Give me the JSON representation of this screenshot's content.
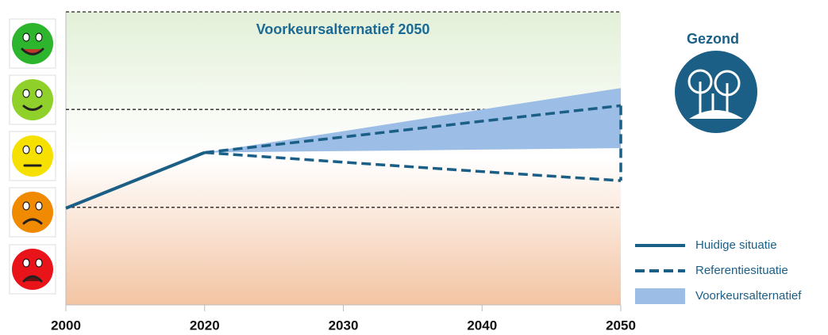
{
  "chart_data": {
    "type": "line",
    "title": "Voorkeursalternatief 2050",
    "badge": "Gezond",
    "categories": [
      "2000",
      "2020",
      "2030",
      "2040",
      "2050"
    ],
    "ylim": [
      0,
      100
    ],
    "yticks": [
      33.3,
      66.7,
      100
    ],
    "grid": true,
    "series": [
      {
        "name": "Huidige situatie",
        "color": "#1b5f86",
        "style": "solid",
        "values": [
          33,
          52,
          null,
          null,
          null
        ]
      },
      {
        "name": "Referentiesituatie",
        "color": "#1b5f86",
        "style": "dashed",
        "low": [
          null,
          52,
          48.7,
          45.5,
          42.4
        ],
        "high": [
          null,
          52,
          57.3,
          62.7,
          68
        ]
      },
      {
        "name": "Voorkeursalternatief",
        "color": "#9bbde6",
        "style": "band",
        "low": [
          null,
          52,
          52.5,
          53,
          53.5
        ],
        "high": [
          null,
          52,
          59.3,
          66.7,
          74
        ]
      }
    ]
  }
}
